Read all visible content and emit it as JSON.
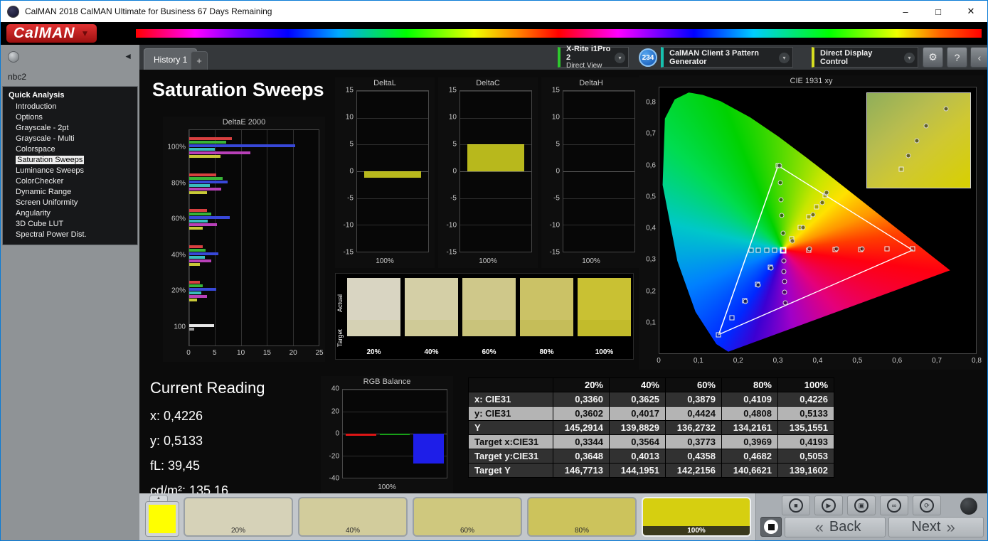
{
  "window": {
    "title": "CalMAN 2018 CalMAN Ultimate for Business 67 Days Remaining"
  },
  "brand": {
    "logo": "CalMAN"
  },
  "icons": {
    "minimize": "–",
    "maximize": "□",
    "close": "✕",
    "caret": "▼",
    "chevron_down": "▾",
    "collapse_left": "◄",
    "panel_left": "‹",
    "gear": "⚙",
    "help": "?",
    "up_tab": "▲"
  },
  "toolbar": {
    "tabs": [
      {
        "label": "History 1"
      }
    ],
    "add_tab": "+",
    "meter": {
      "line1": "X-Rite i1Pro 2",
      "line2": "Direct View",
      "accent": "#2ec82e"
    },
    "meter_badge": "234",
    "pattern_generator": {
      "label": "CalMAN Client 3 Pattern Generator",
      "accent": "#17c0ae"
    },
    "display_control": {
      "label": "Direct Display Control",
      "accent": "#d6de20"
    }
  },
  "sidebar": {
    "workflow_name": "nbc2",
    "section_title": "Quick Analysis",
    "selected": "Saturation Sweeps",
    "items": [
      "Introduction",
      "Options",
      "Grayscale - 2pt",
      "Grayscale - Multi",
      "Colorspace",
      "Saturation Sweeps",
      "Luminance Sweeps",
      "ColorChecker",
      "Dynamic Range",
      "Screen Uniformity",
      "Angularity",
      "3D Cube LUT",
      "Spectral Power Dist."
    ]
  },
  "page": {
    "title": "Saturation Sweeps"
  },
  "chart_data": [
    {
      "type": "bar",
      "title": "DeltaE 2000",
      "orientation": "horizontal",
      "categories": [
        "100%",
        "80%",
        "60%",
        "40%",
        "20%",
        "100"
      ],
      "groups": [
        [
          8.2,
          7.2,
          20.5,
          5.0,
          11.8,
          6.0
        ],
        [
          5.2,
          6.4,
          7.4,
          4.0,
          6.2,
          3.4
        ],
        [
          3.4,
          4.2,
          7.8,
          3.6,
          5.4,
          2.6
        ],
        [
          2.6,
          3.2,
          5.6,
          3.0,
          4.2,
          2.0
        ],
        [
          2.0,
          2.6,
          5.2,
          2.4,
          3.4,
          1.5
        ],
        [
          4.8,
          0.9
        ]
      ],
      "group_colors": [
        [
          "#d84040",
          "#38b438",
          "#3848d8",
          "#38bcbc",
          "#b840b8",
          "#c8c838"
        ],
        [
          "#d84040",
          "#38b438",
          "#3848d8",
          "#38bcbc",
          "#b840b8",
          "#c8c838"
        ],
        [
          "#d84040",
          "#38b438",
          "#3848d8",
          "#38bcbc",
          "#b840b8",
          "#c8c838"
        ],
        [
          "#d84040",
          "#38b438",
          "#3848d8",
          "#38bcbc",
          "#b840b8",
          "#c8c838"
        ],
        [
          "#d84040",
          "#38b438",
          "#3848d8",
          "#38bcbc",
          "#b840b8",
          "#c8c838"
        ],
        [
          "#e8e8e8",
          "#9a9a9a"
        ]
      ],
      "xlim": [
        0,
        25
      ],
      "xticks": [
        "0",
        "5",
        "10",
        "15",
        "20",
        "25"
      ],
      "xtick_values": [
        0,
        5,
        10,
        15,
        20,
        25
      ]
    },
    {
      "type": "bar",
      "title": "DeltaL",
      "categories": [
        "100%"
      ],
      "values": [
        -1.2
      ],
      "ylim": [
        -15,
        15
      ],
      "yticks": [
        "15",
        "10",
        "5",
        "0",
        "-5",
        "-10",
        "-15"
      ],
      "ytick_values": [
        15,
        10,
        5,
        0,
        -5,
        -10,
        -15
      ],
      "bar_color": "#b8b81c"
    },
    {
      "type": "bar",
      "title": "DeltaC",
      "categories": [
        "100%"
      ],
      "values": [
        5.0
      ],
      "ylim": [
        -15,
        15
      ],
      "yticks": [
        "15",
        "10",
        "5",
        "0",
        "-5",
        "-10",
        "-15"
      ],
      "ytick_values": [
        15,
        10,
        5,
        0,
        -5,
        -10,
        -15
      ],
      "bar_color": "#b8b81c"
    },
    {
      "type": "bar",
      "title": "DeltaH",
      "categories": [
        "100%"
      ],
      "values": [
        0
      ],
      "ylim": [
        -15,
        15
      ],
      "yticks": [
        "15",
        "10",
        "5",
        "0",
        "-5",
        "-10",
        "-15"
      ],
      "ytick_values": [
        15,
        10,
        5,
        0,
        -5,
        -10,
        -15
      ],
      "bar_color": "#b8b81c"
    },
    {
      "type": "bar",
      "title": "RGB Balance",
      "categories": [
        "100%"
      ],
      "series": [
        {
          "name": "Red",
          "values": [
            -2.0
          ],
          "color": "#dd1515"
        },
        {
          "name": "Green",
          "values": [
            -1.2
          ],
          "color": "#18a018"
        },
        {
          "name": "Blue",
          "values": [
            -27.0
          ],
          "color": "#1e1ee8"
        }
      ],
      "ylim": [
        -40,
        40
      ],
      "yticks": [
        "40",
        "20",
        "0",
        "-20",
        "-40"
      ],
      "ytick_values": [
        40,
        20,
        0,
        -20,
        -40
      ]
    },
    {
      "type": "scatter",
      "title": "CIE 1931 xy",
      "xlim": [
        0,
        0.8
      ],
      "ylim": [
        0,
        0.85
      ],
      "xticks": [
        "0",
        "0,1",
        "0,2",
        "0,3",
        "0,4",
        "0,5",
        "0,6",
        "0,7",
        "0,8"
      ],
      "xtick_values": [
        0,
        0.1,
        0.2,
        0.3,
        0.4,
        0.5,
        0.6,
        0.7,
        0.8
      ],
      "yticks": [
        "0,8",
        "0,7",
        "0,6",
        "0,5",
        "0,4",
        "0,3",
        "0,2",
        "0,1"
      ],
      "ytick_values": [
        0.8,
        0.7,
        0.6,
        0.5,
        0.4,
        0.3,
        0.2,
        0.1
      ],
      "gamut_triangle": [
        [
          0.64,
          0.33
        ],
        [
          0.3,
          0.6
        ],
        [
          0.15,
          0.06
        ]
      ],
      "white_point": [
        0.3127,
        0.329
      ],
      "target_squares": [
        [
          0.232,
          0.329
        ],
        [
          0.249,
          0.329
        ],
        [
          0.271,
          0.329
        ],
        [
          0.291,
          0.329
        ],
        [
          0.378,
          0.33
        ],
        [
          0.444,
          0.331
        ],
        [
          0.509,
          0.332
        ],
        [
          0.575,
          0.333
        ],
        [
          0.64,
          0.334
        ],
        [
          0.28,
          0.275
        ],
        [
          0.248,
          0.221
        ],
        [
          0.215,
          0.168
        ],
        [
          0.183,
          0.114
        ],
        [
          0.15,
          0.06
        ],
        [
          0.3,
          0.6
        ],
        [
          0.3344,
          0.3648
        ],
        [
          0.3564,
          0.4013
        ],
        [
          0.3773,
          0.4358
        ],
        [
          0.3969,
          0.4682
        ],
        [
          0.4193,
          0.5053
        ]
      ],
      "measured_circles": [
        [
          0.336,
          0.3602
        ],
        [
          0.3625,
          0.4017
        ],
        [
          0.3879,
          0.4424
        ],
        [
          0.4109,
          0.4808
        ],
        [
          0.4226,
          0.5133
        ],
        [
          0.312,
          0.385
        ],
        [
          0.31,
          0.44
        ],
        [
          0.308,
          0.49
        ],
        [
          0.306,
          0.545
        ],
        [
          0.304,
          0.6
        ],
        [
          0.314,
          0.295
        ],
        [
          0.315,
          0.262
        ],
        [
          0.316,
          0.23
        ],
        [
          0.317,
          0.196
        ],
        [
          0.318,
          0.162
        ],
        [
          0.38,
          0.333
        ],
        [
          0.447,
          0.334
        ],
        [
          0.512,
          0.335
        ],
        [
          0.282,
          0.272
        ],
        [
          0.25,
          0.218
        ],
        [
          0.217,
          0.165
        ]
      ],
      "inset": {
        "points": [
          {
            "x": 76,
            "y": 16,
            "type": "circle"
          },
          {
            "x": 57,
            "y": 34,
            "type": "circle"
          },
          {
            "x": 48,
            "y": 50,
            "type": "circle"
          },
          {
            "x": 40,
            "y": 66,
            "type": "circle"
          },
          {
            "x": 33,
            "y": 80,
            "type": "square"
          }
        ]
      }
    }
  ],
  "swatches": {
    "row_labels": [
      "Actual",
      "Target"
    ],
    "columns": [
      {
        "label": "20%",
        "actual": "#d9d5c2",
        "target": "#d5d1b4"
      },
      {
        "label": "40%",
        "actual": "#d4cfa6",
        "target": "#cfca97"
      },
      {
        "label": "60%",
        "actual": "#cfc88a",
        "target": "#c9c37b"
      },
      {
        "label": "80%",
        "actual": "#cbc266",
        "target": "#c5bd59"
      },
      {
        "label": "100%",
        "actual": "#c9c133",
        "target": "#c2bb2b"
      }
    ]
  },
  "current_reading": {
    "title": "Current Reading",
    "rows": [
      {
        "label": "x:",
        "value": "0,4226"
      },
      {
        "label": "y:",
        "value": "0,5133"
      },
      {
        "label": "fL:",
        "value": "39,45"
      },
      {
        "label": "cd/m²:",
        "value": "135,16"
      }
    ]
  },
  "table": {
    "columns": [
      "20%",
      "40%",
      "60%",
      "80%",
      "100%"
    ],
    "row_styles": [
      "dark",
      "light",
      "dark",
      "light",
      "dark",
      "dark"
    ],
    "rows": [
      {
        "label": "x: CIE31",
        "values": [
          "0,3360",
          "0,3625",
          "0,3879",
          "0,4109",
          "0,4226"
        ]
      },
      {
        "label": "y: CIE31",
        "values": [
          "0,3602",
          "0,4017",
          "0,4424",
          "0,4808",
          "0,5133"
        ]
      },
      {
        "label": "Y",
        "values": [
          "145,2914",
          "139,8829",
          "136,2732",
          "134,2161",
          "135,1551"
        ]
      },
      {
        "label": "Target x:CIE31",
        "values": [
          "0,3344",
          "0,3564",
          "0,3773",
          "0,3969",
          "0,4193"
        ]
      },
      {
        "label": "Target y:CIE31",
        "values": [
          "0,3648",
          "0,4013",
          "0,4358",
          "0,4682",
          "0,5053"
        ]
      },
      {
        "label": "Target Y",
        "values": [
          "146,7713",
          "144,1951",
          "142,2156",
          "140,6621",
          "139,1602"
        ]
      }
    ]
  },
  "bottom_bar": {
    "pattern_swatch_color": "#ffff00",
    "pattern_buttons": [
      {
        "label": "20%",
        "color": "#d6d2b8"
      },
      {
        "label": "40%",
        "color": "#d2cc9c"
      },
      {
        "label": "60%",
        "color": "#cfc87e"
      },
      {
        "label": "80%",
        "color": "#ccc35c"
      },
      {
        "label": "100%",
        "color": "#d6cf10",
        "selected": true
      }
    ],
    "transport": [
      {
        "name": "stop-icon",
        "glyph": "■"
      },
      {
        "name": "play-icon",
        "glyph": "▶"
      },
      {
        "name": "save-icon",
        "glyph": "▣"
      },
      {
        "name": "loop-icon",
        "glyph": "∞"
      },
      {
        "name": "refresh-icon",
        "glyph": "⟳"
      }
    ],
    "nav": {
      "back": "Back",
      "next": "Next",
      "back_chevrons": "«",
      "next_chevrons": "»"
    }
  }
}
